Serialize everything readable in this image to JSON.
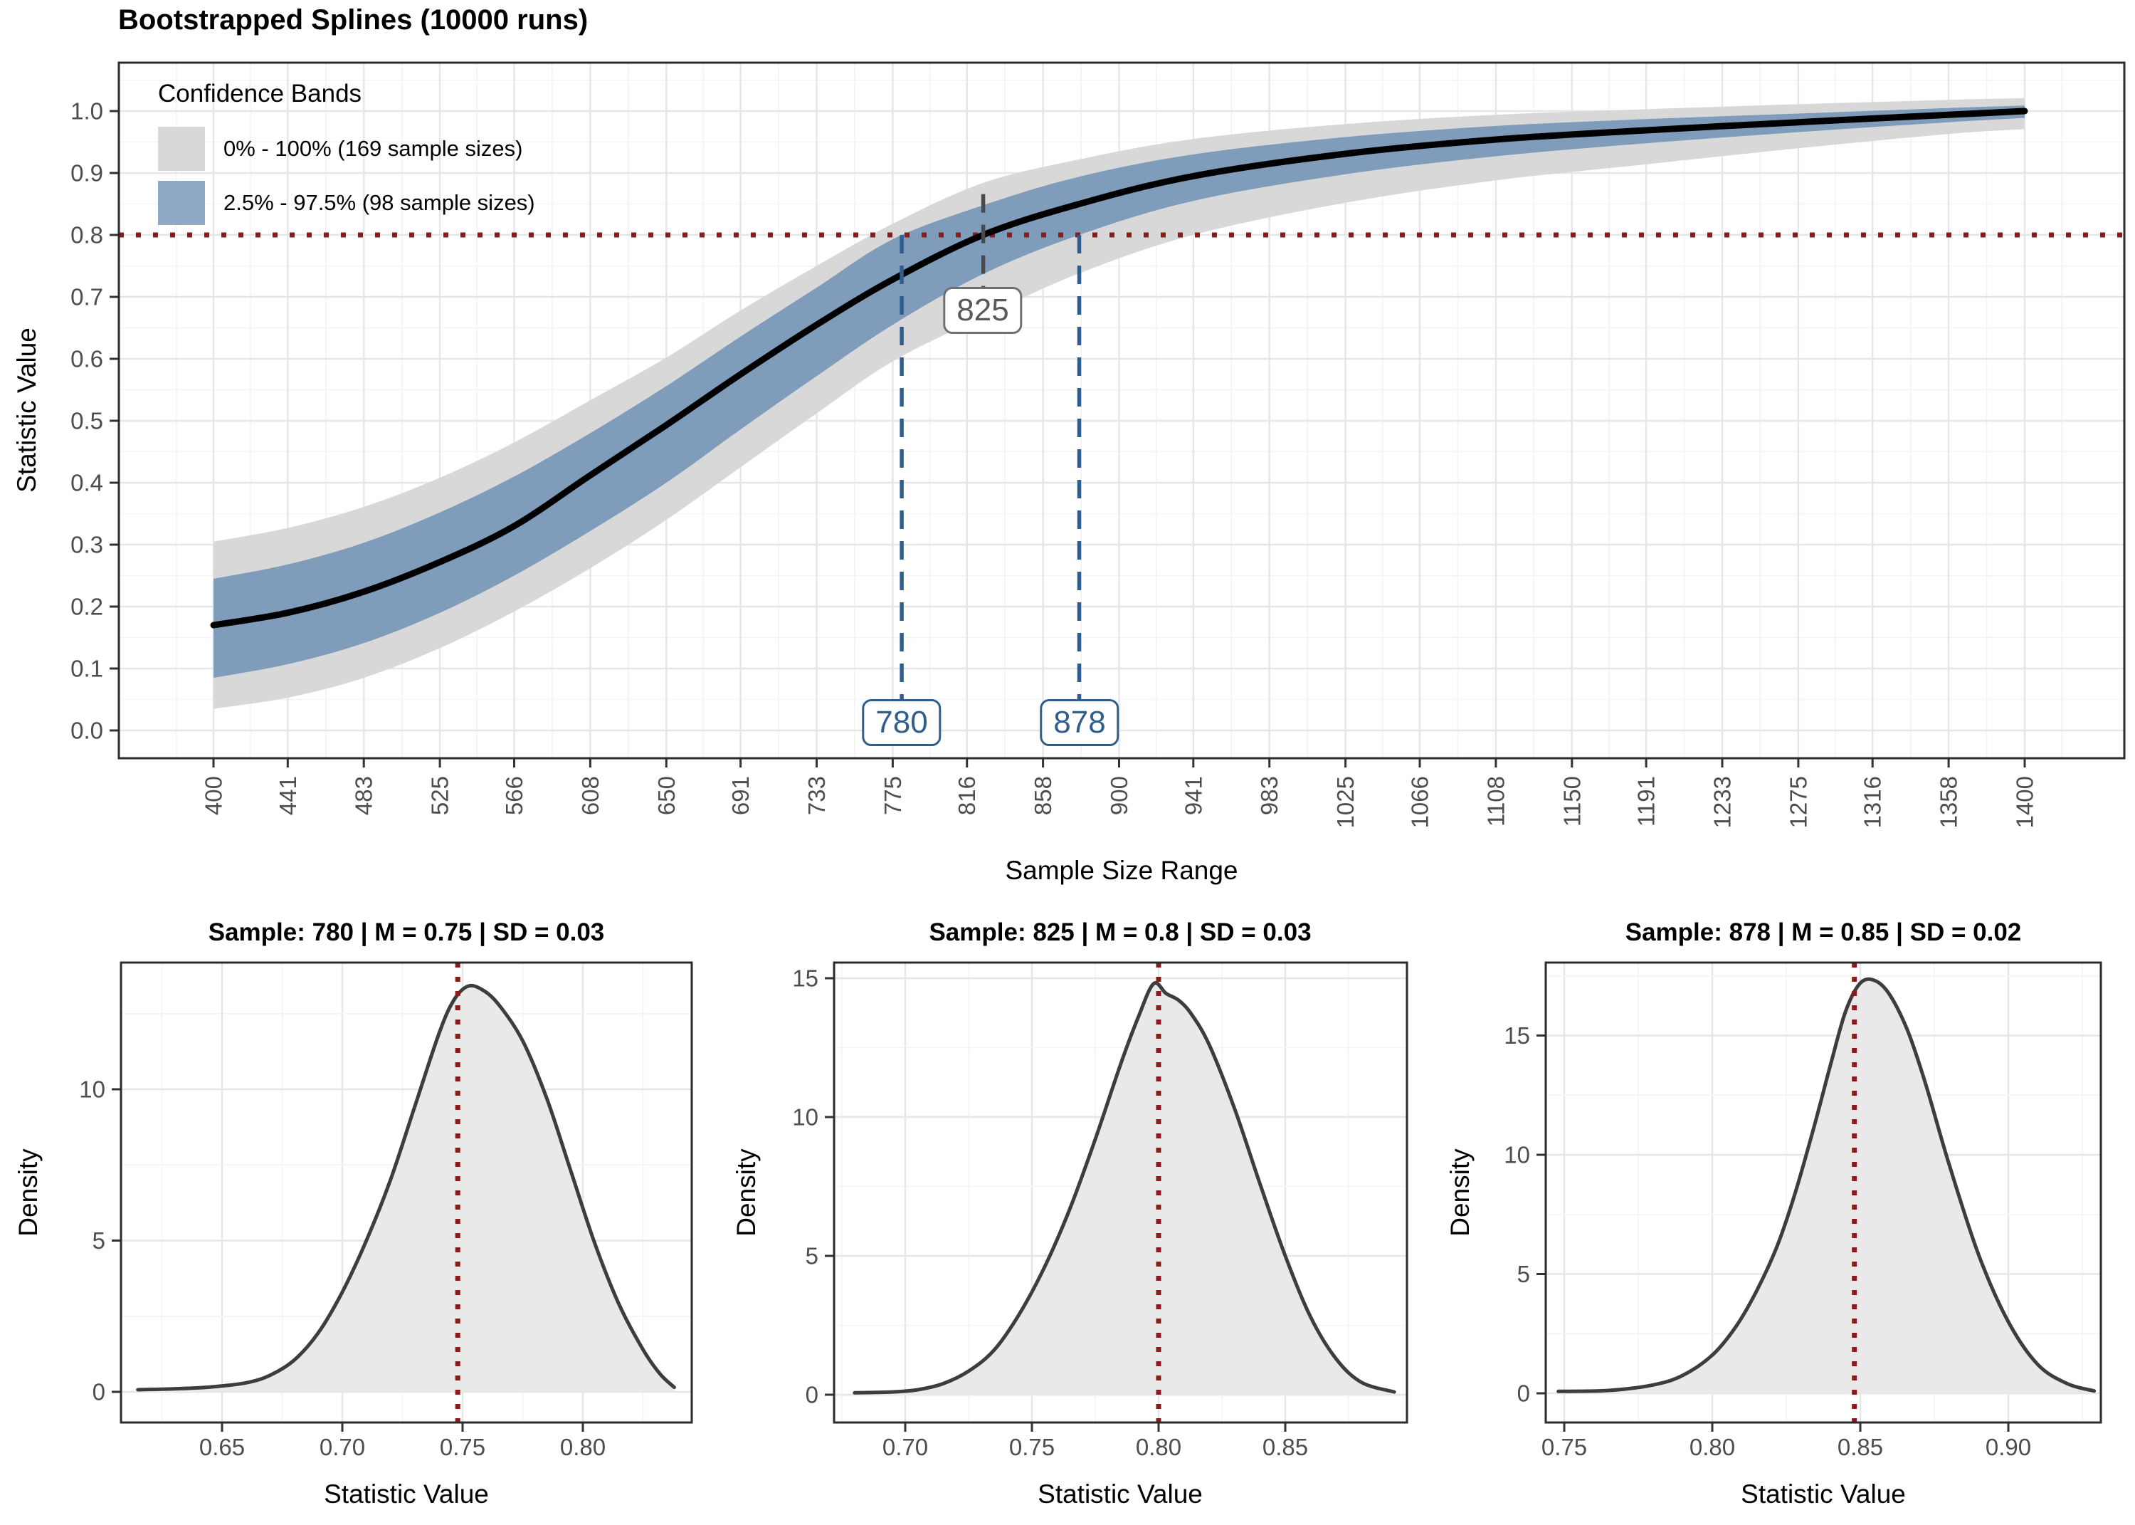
{
  "figure": {
    "background": "#FFFFFF"
  },
  "colors": {
    "band_outer": "#D8D8D8",
    "band_inner": "#7F9CBB",
    "legend_outer_swatch": "#D8D8D8",
    "legend_inner_swatch": "#8FA9C6",
    "spline_line": "#000000",
    "threshold_line": "#8B1A1A",
    "annotation_blue": "#2F5E8D",
    "annotation_grey": "#4A4A4A",
    "grid_major": "#E6E6E6",
    "grid_minor": "#F3F3F3",
    "axis_text": "#4D4D4D",
    "panel_border": "#2B2B2B",
    "tick_mark": "#333333",
    "density_fill": "#E9E9E9",
    "density_stroke": "#3D3D3D",
    "mean_line": "#8B1A1A"
  },
  "chart_data": [
    {
      "type": "line",
      "title": "Bootstrapped Splines (10000 runs)",
      "xlabel": "Sample Size Range",
      "ylabel": "Statistic Value",
      "x_ticks": [
        400,
        441,
        483,
        525,
        566,
        608,
        650,
        691,
        733,
        775,
        816,
        858,
        900,
        941,
        983,
        1025,
        1066,
        1108,
        1150,
        1191,
        1233,
        1275,
        1316,
        1358,
        1400
      ],
      "y_ticks": [
        0.0,
        0.1,
        0.2,
        0.3,
        0.4,
        0.5,
        0.6,
        0.7,
        0.8,
        0.9,
        1.0
      ],
      "xlim": [
        400,
        1400
      ],
      "ylim": [
        0.0,
        1.05
      ],
      "grid": "on",
      "threshold_y": 0.8,
      "legend": {
        "title": "Confidence Bands",
        "position": "top-left",
        "items": [
          {
            "label": "0% - 100% (169 sample sizes)",
            "color": "#D8D8D8"
          },
          {
            "label": "2.5% - 97.5% (98 sample sizes)",
            "color": "#8FA9C6"
          }
        ]
      },
      "series": [
        {
          "name": "spline_mean",
          "x": [
            400,
            441,
            483,
            525,
            566,
            608,
            650,
            691,
            733,
            775,
            825,
            878,
            941,
            1025,
            1108,
            1191,
            1275,
            1358,
            1400
          ],
          "y": [
            0.17,
            0.19,
            0.224,
            0.272,
            0.33,
            0.412,
            0.493,
            0.575,
            0.655,
            0.728,
            0.8,
            0.85,
            0.895,
            0.931,
            0.954,
            0.969,
            0.982,
            0.994,
            1.0
          ]
        },
        {
          "name": "band_2.5_97.5_high",
          "x": [
            400,
            441,
            483,
            525,
            566,
            608,
            650,
            691,
            733,
            775,
            825,
            878,
            941,
            1025,
            1108,
            1191,
            1275,
            1358,
            1400
          ],
          "y": [
            0.245,
            0.268,
            0.303,
            0.352,
            0.41,
            0.48,
            0.556,
            0.636,
            0.715,
            0.793,
            0.848,
            0.894,
            0.93,
            0.958,
            0.976,
            0.987,
            0.996,
            1.005,
            1.009
          ]
        },
        {
          "name": "band_2.5_97.5_low",
          "x": [
            400,
            441,
            483,
            525,
            566,
            608,
            650,
            691,
            733,
            775,
            825,
            878,
            941,
            1025,
            1108,
            1191,
            1275,
            1358,
            1400
          ],
          "y": [
            0.085,
            0.107,
            0.141,
            0.19,
            0.25,
            0.322,
            0.4,
            0.486,
            0.572,
            0.655,
            0.737,
            0.8,
            0.855,
            0.898,
            0.927,
            0.948,
            0.966,
            0.982,
            0.989
          ]
        },
        {
          "name": "band_0_100_high",
          "x": [
            400,
            441,
            483,
            525,
            566,
            608,
            650,
            691,
            733,
            775,
            825,
            878,
            941,
            1025,
            1108,
            1191,
            1275,
            1358,
            1400
          ],
          "y": [
            0.305,
            0.327,
            0.361,
            0.408,
            0.465,
            0.533,
            0.602,
            0.678,
            0.75,
            0.818,
            0.884,
            0.922,
            0.955,
            0.979,
            0.994,
            1.003,
            1.011,
            1.018,
            1.021
          ]
        },
        {
          "name": "band_0_100_low",
          "x": [
            400,
            441,
            483,
            525,
            566,
            608,
            650,
            691,
            733,
            775,
            825,
            878,
            941,
            1025,
            1108,
            1191,
            1275,
            1358,
            1400
          ],
          "y": [
            0.035,
            0.053,
            0.085,
            0.133,
            0.192,
            0.262,
            0.34,
            0.425,
            0.512,
            0.596,
            0.668,
            0.738,
            0.8,
            0.852,
            0.888,
            0.914,
            0.94,
            0.963,
            0.971
          ]
        }
      ],
      "annotations": [
        {
          "label": "825",
          "x": 825,
          "style": "grey",
          "line_y_from": 0.714,
          "line_y_to": 0.866
        },
        {
          "label": "780",
          "x": 780,
          "style": "blue",
          "line_y_from": 0.048,
          "line_y_to": 0.8
        },
        {
          "label": "878",
          "x": 878,
          "style": "blue",
          "line_y_from": 0.048,
          "line_y_to": 0.8
        }
      ]
    },
    {
      "type": "area",
      "title": "Sample: 780 | M = 0.75 | SD = 0.03",
      "xlabel": "Statistic Value",
      "ylabel": "Density",
      "sample": 780,
      "mean": 0.75,
      "sd": 0.03,
      "mean_line_x": 0.748,
      "x_ticks": [
        0.65,
        0.7,
        0.75,
        0.8
      ],
      "y_ticks": [
        0,
        5,
        10
      ],
      "x": [
        0.615,
        0.63,
        0.645,
        0.66,
        0.67,
        0.68,
        0.69,
        0.7,
        0.71,
        0.72,
        0.73,
        0.74,
        0.746,
        0.752,
        0.758,
        0.765,
        0.775,
        0.785,
        0.795,
        0.805,
        0.815,
        0.825,
        0.832,
        0.838
      ],
      "y": [
        0.07,
        0.1,
        0.16,
        0.3,
        0.55,
        1.05,
        1.95,
        3.3,
        5.0,
        7.0,
        9.4,
        11.8,
        12.9,
        13.4,
        13.3,
        12.8,
        11.6,
        9.7,
        7.3,
        4.9,
        2.9,
        1.4,
        0.6,
        0.15
      ]
    },
    {
      "type": "area",
      "title": "Sample: 825 | M = 0.8 | SD = 0.03",
      "xlabel": "Statistic Value",
      "ylabel": "Density",
      "sample": 825,
      "mean": 0.8,
      "sd": 0.03,
      "mean_line_x": 0.8,
      "x_ticks": [
        0.7,
        0.75,
        0.8,
        0.85
      ],
      "y_ticks": [
        0,
        5,
        10,
        15
      ],
      "x": [
        0.68,
        0.695,
        0.705,
        0.715,
        0.725,
        0.735,
        0.745,
        0.755,
        0.765,
        0.775,
        0.785,
        0.792,
        0.798,
        0.803,
        0.808,
        0.813,
        0.82,
        0.83,
        0.84,
        0.85,
        0.86,
        0.87,
        0.88,
        0.893
      ],
      "y": [
        0.07,
        0.1,
        0.18,
        0.4,
        0.85,
        1.6,
        2.9,
        4.6,
        6.7,
        9.2,
        11.9,
        13.6,
        14.8,
        14.45,
        14.2,
        13.7,
        12.6,
        10.3,
        7.6,
        5.0,
        2.8,
        1.3,
        0.45,
        0.1
      ]
    },
    {
      "type": "area",
      "title": "Sample: 878 | M = 0.85 | SD = 0.02",
      "xlabel": "Statistic Value",
      "ylabel": "Density",
      "sample": 878,
      "mean": 0.85,
      "sd": 0.02,
      "mean_line_x": 0.848,
      "x_ticks": [
        0.75,
        0.8,
        0.85,
        0.9
      ],
      "y_ticks": [
        0,
        5,
        10,
        15
      ],
      "x": [
        0.748,
        0.765,
        0.78,
        0.79,
        0.8,
        0.808,
        0.815,
        0.822,
        0.828,
        0.834,
        0.84,
        0.845,
        0.85,
        0.855,
        0.86,
        0.866,
        0.872,
        0.88,
        0.89,
        0.9,
        0.91,
        0.92,
        0.929
      ],
      "y": [
        0.08,
        0.12,
        0.35,
        0.75,
        1.6,
        2.8,
        4.3,
        6.2,
        8.4,
        11.0,
        13.8,
        16.0,
        17.2,
        17.3,
        16.7,
        15.2,
        13.0,
        9.6,
        5.8,
        3.0,
        1.2,
        0.4,
        0.1
      ]
    }
  ]
}
